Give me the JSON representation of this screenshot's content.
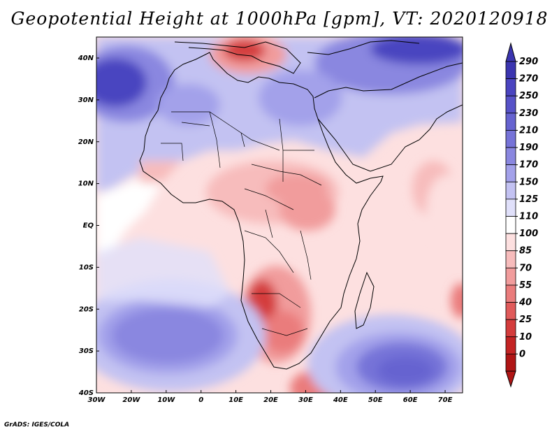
{
  "title": "Geopotential Height at 1000hPa [gpm], VT: 2020120918",
  "footer": "GrADS: IGES/COLA",
  "axes": {
    "lon_labels": [
      "30W",
      "20W",
      "10W",
      "0",
      "10E",
      "20E",
      "30E",
      "40E",
      "50E",
      "60E",
      "70E"
    ],
    "lat_labels": [
      "40N",
      "30N",
      "20N",
      "10N",
      "EQ",
      "10S",
      "20S",
      "30S",
      "40S"
    ]
  },
  "colorbar": {
    "levels": [
      "290",
      "270",
      "250",
      "230",
      "210",
      "190",
      "170",
      "150",
      "125",
      "110",
      "100",
      "85",
      "70",
      "55",
      "40",
      "25",
      "10",
      "0"
    ],
    "colors": [
      "#3b35b0",
      "#4a44c0",
      "#5752c8",
      "#6663d0",
      "#7673d8",
      "#8a87e0",
      "#a3a1ea",
      "#c3c2f2",
      "#e0e0fa",
      "#ffffff",
      "#fde0e0",
      "#f7bcbc",
      "#f19c9c",
      "#ea7c7c",
      "#e05a5a",
      "#d43c3c",
      "#c42424",
      "#b01515"
    ]
  },
  "legend_icons": {
    "top_arrow": "triangle-up-icon",
    "bottom_arrow": "triangle-down-icon"
  }
}
